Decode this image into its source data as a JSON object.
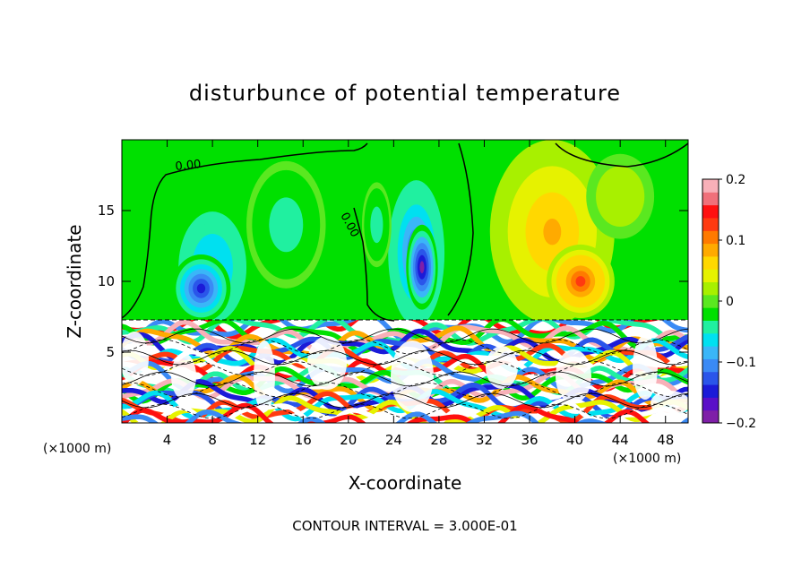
{
  "chart_data": {
    "type": "heatmap",
    "title": "disturbunce of potential temperature",
    "xlabel": "X-coordinate",
    "ylabel": "Z-coordinate",
    "x_unit": "(×1000 m)",
    "z_unit": "(×1000 m)",
    "xlim": [
      0,
      50
    ],
    "ylim": [
      0,
      20
    ],
    "x_ticks": [
      4,
      8,
      12,
      16,
      20,
      24,
      28,
      32,
      36,
      40,
      44,
      48
    ],
    "y_ticks": [
      5,
      10,
      15
    ],
    "colorbar": {
      "range": [
        -0.2,
        0.2
      ],
      "ticks": [
        "0.2",
        "0.1",
        "0",
        "−0.1",
        "−0.2"
      ],
      "colors": [
        "#7f1fa8",
        "#5a0fc8",
        "#1b1bd8",
        "#2a55ea",
        "#3a8af5",
        "#3ab6f8",
        "#00e0f0",
        "#20f0a0",
        "#00e000",
        "#5ae820",
        "#a8f000",
        "#e6f200",
        "#ffd800",
        "#ffaa00",
        "#ff7a00",
        "#ff3a10",
        "#ff1010",
        "#f0707a",
        "#f8b0b8"
      ]
    },
    "contour_labels": [
      "0.00",
      "0.00"
    ],
    "footer": "CONTOUR INTERVAL = 3.000E-01",
    "blobs": [
      {
        "x": 8,
        "z": 11,
        "rx": 4.2,
        "rz": 5.5,
        "v": -0.08
      },
      {
        "x": 7,
        "z": 9.5,
        "rx": 2.6,
        "rz": 2.4,
        "v": -0.15
      },
      {
        "x": 14.5,
        "z": 14,
        "rx": 3.5,
        "rz": 4.5,
        "v": -0.05
      },
      {
        "x": 26,
        "z": 12,
        "rx": 2.9,
        "rz": 6,
        "v": -0.12
      },
      {
        "x": 26.5,
        "z": 11,
        "rx": 1.4,
        "rz": 3,
        "v": -0.19
      },
      {
        "x": 22.5,
        "z": 14,
        "rx": 1.3,
        "rz": 3,
        "v": -0.05
      },
      {
        "x": 38,
        "z": 13.5,
        "rx": 5.5,
        "rz": 6.5,
        "v": 0.08
      },
      {
        "x": 40.5,
        "z": 10,
        "rx": 3,
        "rz": 2.6,
        "v": 0.13
      },
      {
        "x": 44,
        "z": 16,
        "rx": 3,
        "rz": 3,
        "v": 0.03
      }
    ]
  }
}
